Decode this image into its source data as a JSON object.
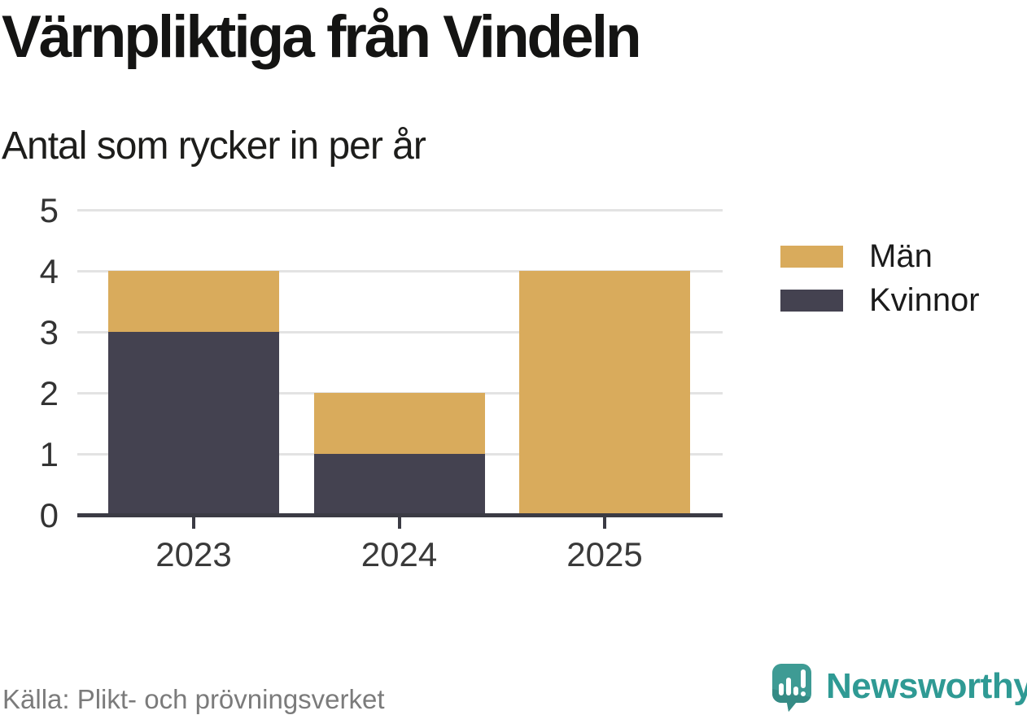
{
  "header": {
    "title": "Värnpliktiga från Vindeln",
    "subtitle": "Antal som rycker in per år"
  },
  "footer": {
    "source": "Källa: Plikt- och prövningsverket",
    "brand_name": "Newsworthy",
    "brand_icon": "newsworthy-chart-bubble-icon"
  },
  "colors": {
    "men_gold": "#D9AB5C",
    "women_dark": "#444250",
    "axis": "#3B3B44",
    "gridline": "#E3E3E3",
    "brand_teal": "#2F9A94",
    "source_gray": "#7B7B7B",
    "title_black": "#141413"
  },
  "chart_data": {
    "type": "bar",
    "stacked": true,
    "title": "Värnpliktiga från Vindeln",
    "subtitle": "Antal som rycker in per år",
    "source": "Källa: Plikt- och prövningsverket",
    "categories": [
      "2023",
      "2024",
      "2025"
    ],
    "series": [
      {
        "name": "Män",
        "color": "#D9AB5C",
        "values": [
          1,
          1,
          4
        ]
      },
      {
        "name": "Kvinnor",
        "color": "#444250",
        "values": [
          3,
          1,
          0
        ]
      }
    ],
    "stack_order_bottom_to_top": [
      "Kvinnor",
      "Män"
    ],
    "totals": [
      4,
      2,
      4
    ],
    "xlabel": "",
    "ylabel": "",
    "ylim": [
      0,
      5
    ],
    "yticks": [
      0,
      1,
      2,
      3,
      4,
      5
    ],
    "grid": true,
    "legend_position": "right"
  }
}
